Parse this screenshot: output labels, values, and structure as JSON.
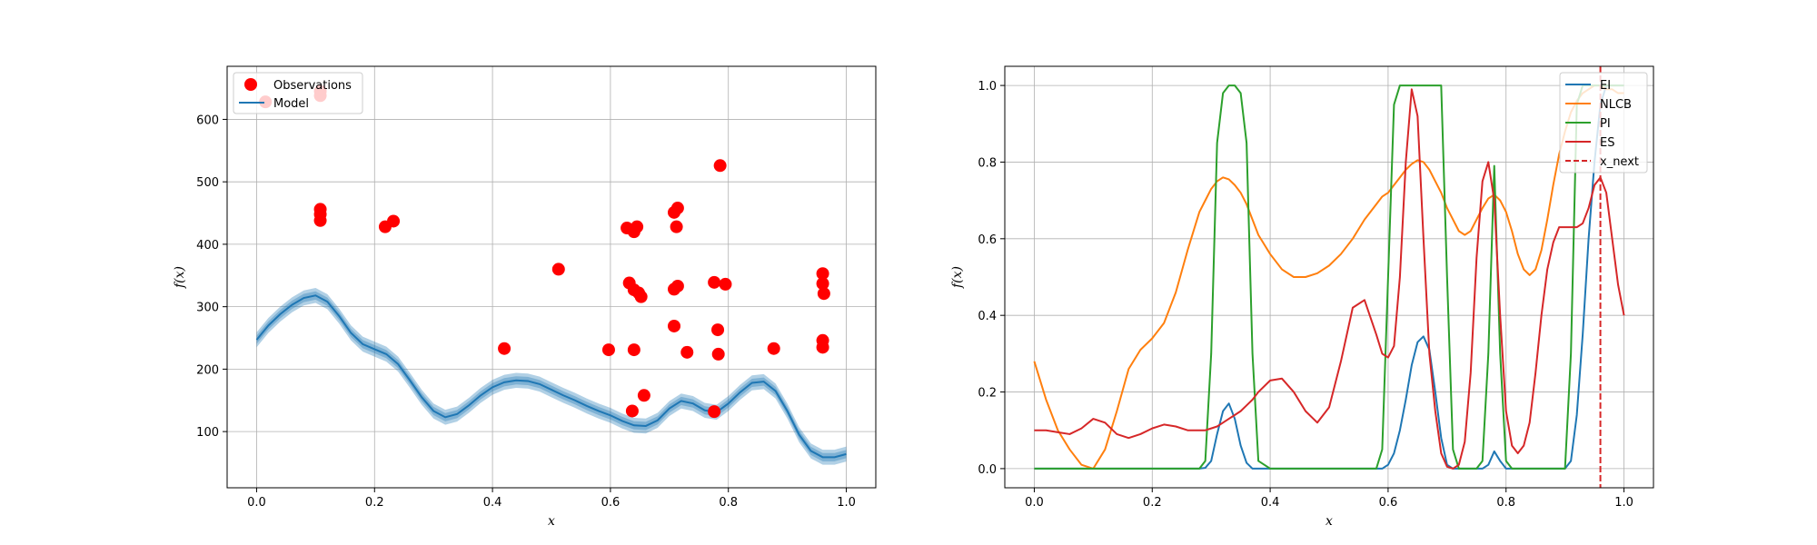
{
  "chart_data": [
    {
      "type": "scatter",
      "xlabel": "x",
      "ylabel": "f(x)",
      "xlim": [
        -0.05,
        1.05
      ],
      "ylim": [
        10,
        685
      ],
      "xticks": [
        0.0,
        0.2,
        0.4,
        0.6,
        0.8,
        1.0
      ],
      "xtick_labels": [
        "0.0",
        "0.2",
        "0.4",
        "0.6",
        "0.8",
        "1.0"
      ],
      "yticks": [
        100,
        200,
        300,
        400,
        500,
        600
      ],
      "ytick_labels": [
        "100",
        "200",
        "300",
        "400",
        "500",
        "600"
      ],
      "grid": true,
      "legend_position": "top-left",
      "legend": [
        "Observations",
        "Model"
      ],
      "colors": {
        "observations": "#ff0000",
        "model": "#1f77b4"
      },
      "observations": [
        [
          0.015,
          628
        ],
        [
          0.108,
          638
        ],
        [
          0.108,
          645
        ],
        [
          0.108,
          438
        ],
        [
          0.108,
          448
        ],
        [
          0.108,
          456
        ],
        [
          0.218,
          428
        ],
        [
          0.232,
          437
        ],
        [
          0.42,
          233
        ],
        [
          0.512,
          360
        ],
        [
          0.597,
          231
        ],
        [
          0.628,
          426
        ],
        [
          0.632,
          338
        ],
        [
          0.64,
          420
        ],
        [
          0.645,
          428
        ],
        [
          0.64,
          327
        ],
        [
          0.648,
          322
        ],
        [
          0.652,
          316
        ],
        [
          0.64,
          231
        ],
        [
          0.637,
          133
        ],
        [
          0.657,
          158
        ],
        [
          0.708,
          451
        ],
        [
          0.714,
          458
        ],
        [
          0.712,
          428
        ],
        [
          0.708,
          328
        ],
        [
          0.714,
          333
        ],
        [
          0.708,
          269
        ],
        [
          0.73,
          227
        ],
        [
          0.776,
          339
        ],
        [
          0.786,
          526
        ],
        [
          0.795,
          336
        ],
        [
          0.782,
          263
        ],
        [
          0.783,
          224
        ],
        [
          0.776,
          132
        ],
        [
          0.877,
          233
        ],
        [
          0.96,
          353
        ],
        [
          0.96,
          337
        ],
        [
          0.962,
          321
        ],
        [
          0.96,
          246
        ],
        [
          0.96,
          235
        ]
      ],
      "model": {
        "x": [
          0.0,
          0.02,
          0.04,
          0.06,
          0.08,
          0.1,
          0.12,
          0.14,
          0.16,
          0.18,
          0.2,
          0.22,
          0.24,
          0.26,
          0.28,
          0.3,
          0.32,
          0.34,
          0.36,
          0.38,
          0.4,
          0.42,
          0.44,
          0.46,
          0.48,
          0.5,
          0.52,
          0.54,
          0.56,
          0.58,
          0.6,
          0.62,
          0.64,
          0.66,
          0.68,
          0.7,
          0.72,
          0.74,
          0.76,
          0.78,
          0.8,
          0.82,
          0.84,
          0.86,
          0.88,
          0.9,
          0.92,
          0.94,
          0.96,
          0.98,
          1.0
        ],
        "mean": [
          247,
          270,
          288,
          303,
          314,
          318,
          308,
          285,
          258,
          240,
          232,
          224,
          208,
          182,
          155,
          133,
          123,
          128,
          142,
          158,
          171,
          179,
          182,
          181,
          176,
          167,
          158,
          150,
          141,
          133,
          126,
          117,
          110,
          109,
          118,
          137,
          149,
          145,
          134,
          131,
          145,
          163,
          178,
          180,
          165,
          133,
          95,
          69,
          59,
          59,
          64
        ],
        "band": 12
      }
    },
    {
      "type": "line",
      "xlabel": "x",
      "ylabel": "f(x)",
      "xlim": [
        -0.05,
        1.05
      ],
      "ylim": [
        -0.05,
        1.05
      ],
      "xticks": [
        0.0,
        0.2,
        0.4,
        0.6,
        0.8,
        1.0
      ],
      "xtick_labels": [
        "0.0",
        "0.2",
        "0.4",
        "0.6",
        "0.8",
        "1.0"
      ],
      "yticks": [
        0.0,
        0.2,
        0.4,
        0.6,
        0.8,
        1.0
      ],
      "ytick_labels": [
        "0.0",
        "0.2",
        "0.4",
        "0.6",
        "0.8",
        "1.0"
      ],
      "grid": true,
      "legend_position": "top-right",
      "x_next": 0.96,
      "x_next_label": "x_next",
      "x_next_color": "#d62728",
      "x": [
        0.0,
        0.02,
        0.04,
        0.06,
        0.08,
        0.1,
        0.12,
        0.14,
        0.16,
        0.18,
        0.2,
        0.22,
        0.24,
        0.26,
        0.28,
        0.29,
        0.3,
        0.31,
        0.32,
        0.33,
        0.34,
        0.35,
        0.36,
        0.37,
        0.38,
        0.4,
        0.42,
        0.44,
        0.46,
        0.48,
        0.5,
        0.52,
        0.54,
        0.56,
        0.58,
        0.59,
        0.6,
        0.61,
        0.62,
        0.63,
        0.64,
        0.65,
        0.66,
        0.67,
        0.68,
        0.69,
        0.7,
        0.71,
        0.72,
        0.73,
        0.74,
        0.75,
        0.76,
        0.77,
        0.78,
        0.79,
        0.8,
        0.81,
        0.82,
        0.83,
        0.84,
        0.85,
        0.86,
        0.87,
        0.88,
        0.89,
        0.9,
        0.91,
        0.92,
        0.93,
        0.94,
        0.95,
        0.96,
        0.97,
        0.98,
        0.99,
        1.0
      ],
      "series": [
        {
          "name": "EI",
          "color": "#1f77b4",
          "values": [
            0,
            0,
            0,
            0,
            0,
            0,
            0,
            0,
            0,
            0,
            0,
            0,
            0,
            0,
            0,
            0.002,
            0.02,
            0.09,
            0.15,
            0.17,
            0.13,
            0.06,
            0.015,
            0,
            0,
            0,
            0,
            0,
            0,
            0,
            0,
            0,
            0,
            0,
            0,
            0,
            0.01,
            0.04,
            0.1,
            0.18,
            0.27,
            0.33,
            0.345,
            0.31,
            0.2,
            0.08,
            0.01,
            0,
            0,
            0,
            0,
            0,
            0,
            0.01,
            0.045,
            0.02,
            0,
            0,
            0,
            0,
            0,
            0,
            0,
            0,
            0,
            0,
            0,
            0.02,
            0.14,
            0.35,
            0.6,
            0.8,
            0.95,
            1.0,
            1.0,
            1.0,
            1.0
          ]
        },
        {
          "name": "NLCB",
          "color": "#ff7f0e",
          "values": [
            0.28,
            0.18,
            0.1,
            0.05,
            0.01,
            0.0,
            0.05,
            0.15,
            0.26,
            0.31,
            0.34,
            0.38,
            0.46,
            0.57,
            0.67,
            0.7,
            0.73,
            0.75,
            0.76,
            0.755,
            0.74,
            0.72,
            0.69,
            0.65,
            0.61,
            0.56,
            0.52,
            0.5,
            0.5,
            0.51,
            0.53,
            0.56,
            0.6,
            0.65,
            0.69,
            0.71,
            0.72,
            0.74,
            0.76,
            0.78,
            0.795,
            0.805,
            0.8,
            0.78,
            0.75,
            0.72,
            0.68,
            0.65,
            0.62,
            0.61,
            0.62,
            0.65,
            0.68,
            0.705,
            0.715,
            0.7,
            0.67,
            0.62,
            0.56,
            0.52,
            0.505,
            0.52,
            0.57,
            0.65,
            0.74,
            0.82,
            0.88,
            0.93,
            0.96,
            0.98,
            0.99,
            1.0,
            1.0,
            0.99,
            0.99,
            0.98,
            0.98
          ]
        },
        {
          "name": "PI",
          "color": "#2ca02c",
          "values": [
            0,
            0,
            0,
            0,
            0,
            0,
            0,
            0,
            0,
            0,
            0,
            0,
            0,
            0,
            0,
            0.02,
            0.3,
            0.85,
            0.98,
            1.0,
            1.0,
            0.98,
            0.85,
            0.3,
            0.02,
            0,
            0,
            0,
            0,
            0,
            0,
            0,
            0,
            0,
            0,
            0.05,
            0.5,
            0.95,
            1.0,
            1.0,
            1.0,
            1.0,
            1.0,
            1.0,
            1.0,
            1.0,
            0.5,
            0.05,
            0,
            0,
            0,
            0,
            0.02,
            0.3,
            0.79,
            0.3,
            0.02,
            0,
            0,
            0,
            0,
            0,
            0,
            0,
            0,
            0,
            0,
            0.3,
            0.95,
            1.0,
            1.0,
            1.0,
            1.0,
            1.0,
            1.0,
            1.0,
            1.0
          ]
        },
        {
          "name": "ES",
          "color": "#d62728",
          "values": [
            0.1,
            0.1,
            0.095,
            0.09,
            0.105,
            0.13,
            0.12,
            0.09,
            0.08,
            0.09,
            0.105,
            0.115,
            0.11,
            0.1,
            0.1,
            0.1,
            0.105,
            0.11,
            0.12,
            0.13,
            0.14,
            0.15,
            0.165,
            0.18,
            0.2,
            0.23,
            0.235,
            0.2,
            0.15,
            0.12,
            0.16,
            0.28,
            0.42,
            0.44,
            0.35,
            0.3,
            0.29,
            0.32,
            0.5,
            0.8,
            0.99,
            0.92,
            0.6,
            0.3,
            0.15,
            0.04,
            0.005,
            0.0,
            0.01,
            0.07,
            0.25,
            0.55,
            0.75,
            0.8,
            0.7,
            0.4,
            0.15,
            0.06,
            0.04,
            0.06,
            0.12,
            0.25,
            0.4,
            0.52,
            0.59,
            0.63,
            0.63,
            0.63,
            0.63,
            0.64,
            0.68,
            0.74,
            0.76,
            0.72,
            0.6,
            0.48,
            0.4
          ]
        }
      ]
    }
  ]
}
